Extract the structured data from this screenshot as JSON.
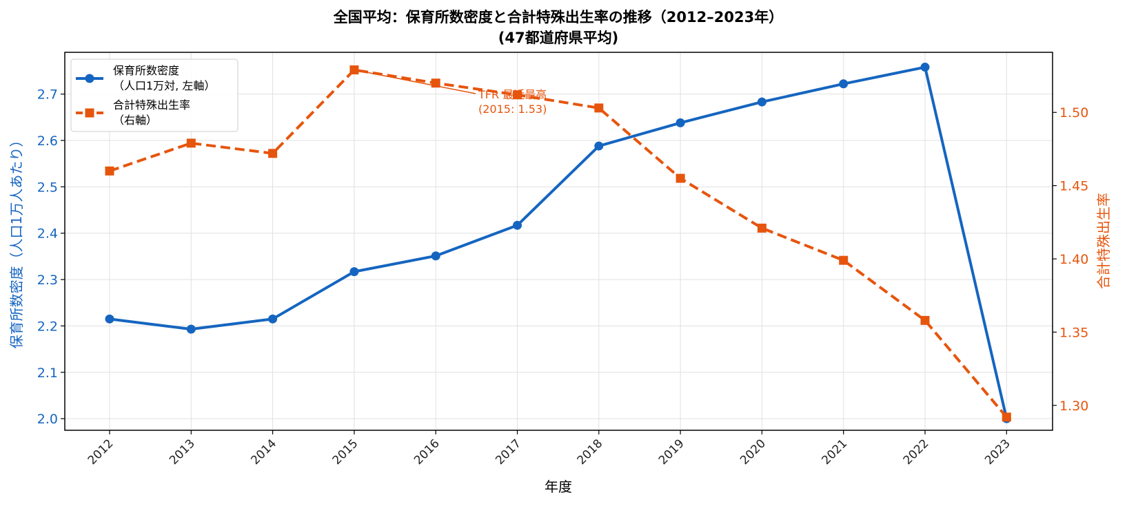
{
  "chart_data": {
    "type": "line",
    "title": "全国平均：保育所数密度と合計特殊出生率の推移（2012–2023年）",
    "subtitle": "(47都道府県平均)",
    "xlabel": "年度",
    "ylabel_left": "保育所数密度（人口1万人あたり）",
    "ylabel_right": "合計特殊出生率",
    "categories": [
      "2012",
      "2013",
      "2014",
      "2015",
      "2016",
      "2017",
      "2018",
      "2019",
      "2020",
      "2021",
      "2022",
      "2023"
    ],
    "ylim_left": [
      1.975,
      2.79
    ],
    "ylim_right": [
      1.283,
      1.541
    ],
    "yticks_left": [
      "2.0",
      "2.1",
      "2.2",
      "2.3",
      "2.4",
      "2.5",
      "2.6",
      "2.7"
    ],
    "yticks_right": [
      "1.30",
      "1.35",
      "1.40",
      "1.45",
      "1.50"
    ],
    "grid": true,
    "legend_position": "top-left",
    "series": [
      {
        "name": "保育所数密度",
        "name_line2": "（人口1万対, 左軸）",
        "axis": "left",
        "color": "#1565c0",
        "marker": "circle",
        "linestyle": "solid",
        "values": [
          2.215,
          2.193,
          2.215,
          2.317,
          2.351,
          2.417,
          2.588,
          2.638,
          2.683,
          2.722,
          2.758,
          2.0
        ]
      },
      {
        "name": "合計特殊出生率",
        "name_line2": "（右軸）",
        "axis": "right",
        "color": "#e6550d",
        "marker": "square",
        "linestyle": "dashed",
        "values": [
          1.46,
          1.479,
          1.472,
          1.529,
          1.52,
          1.512,
          1.503,
          1.455,
          1.421,
          1.399,
          1.358,
          1.292
        ]
      }
    ],
    "annotation": {
      "line1": "TFR 最近最高",
      "line2": "(2015: 1.53)",
      "x": "2015",
      "y": 1.529,
      "axis": "right"
    }
  }
}
